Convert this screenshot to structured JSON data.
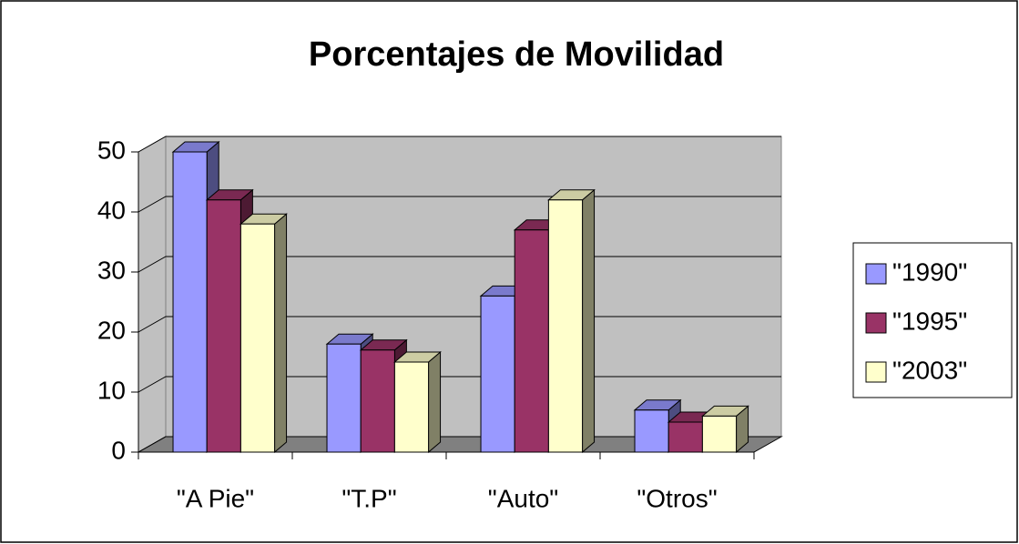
{
  "chart_data": {
    "type": "bar",
    "title": "Porcentajes de Movilidad",
    "categories": [
      "\"A Pie\"",
      "\"T.P\"",
      "\"Auto\"",
      "\"Otros\""
    ],
    "series": [
      {
        "name": "\"1990\"",
        "color": "#9999ff",
        "values": [
          50,
          18,
          26,
          7
        ]
      },
      {
        "name": "\"1995\"",
        "color": "#993366",
        "values": [
          42,
          17,
          37,
          5
        ]
      },
      {
        "name": "\"2003\"",
        "color": "#ffffcc",
        "values": [
          38,
          15,
          42,
          6
        ]
      }
    ],
    "ylim": [
      0,
      50
    ],
    "yticks": [
      0,
      10,
      20,
      30,
      40,
      50
    ],
    "grid": true,
    "legend": "right"
  }
}
